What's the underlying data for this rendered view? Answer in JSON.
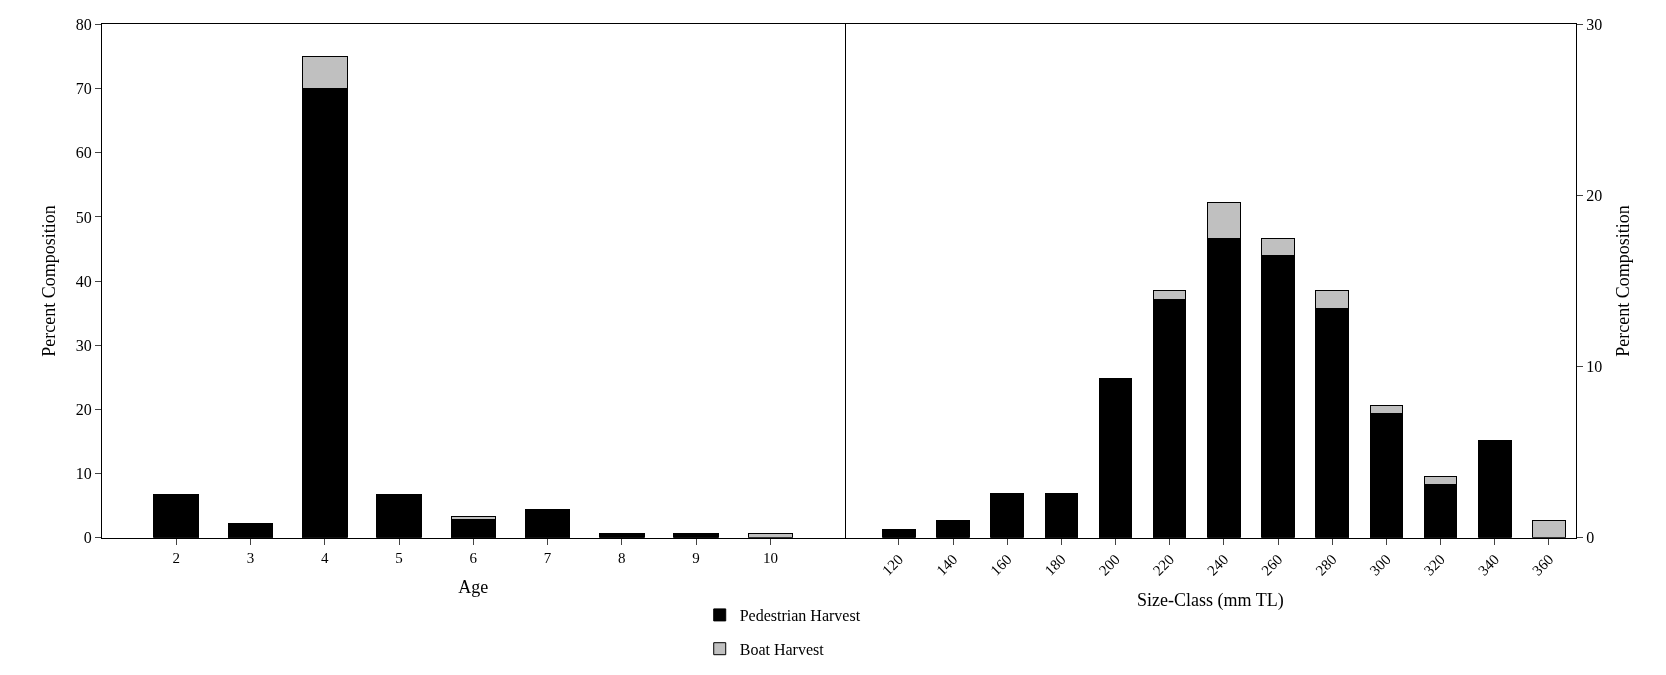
{
  "chart_data": [
    {
      "type": "bar",
      "stacked": true,
      "xlabel": "Age",
      "ylabel": "Percent Composition",
      "categories": [
        "2",
        "3",
        "4",
        "5",
        "6",
        "7",
        "8",
        "9",
        "10"
      ],
      "ylim": [
        0,
        80
      ],
      "yticks": [
        0,
        10,
        20,
        30,
        40,
        50,
        60,
        70,
        80
      ],
      "legend": "bottom",
      "series": [
        {
          "name": "Pedestrian Harvest",
          "color": "#000000",
          "values": [
            6.7,
            2.2,
            70,
            6.7,
            2.9,
            4.4,
            0.6,
            0.6,
            null
          ]
        },
        {
          "name": "Boat Harvest",
          "color": "#c0c0c0",
          "values": [
            null,
            null,
            5,
            null,
            0.4,
            null,
            null,
            null,
            0.6
          ]
        }
      ]
    },
    {
      "type": "bar",
      "stacked": true,
      "xlabel": "Size-Class (mm TL)",
      "ylabel": "Percent Composition",
      "categories": [
        "120",
        "140",
        "160",
        "180",
        "200",
        "220",
        "240",
        "260",
        "280",
        "300",
        "320",
        "340",
        "360"
      ],
      "ylim": [
        0,
        30
      ],
      "yticks": [
        0,
        10,
        20,
        30
      ],
      "series": [
        {
          "color": "#000000",
          "values": [
            0.5,
            1.0,
            2.6,
            2.6,
            9.3,
            13.9,
            17.5,
            16.5,
            13.4,
            7.25,
            3.1,
            5.7,
            null
          ]
        },
        {
          "color": "#c0c0c0",
          "values": [
            null,
            null,
            null,
            null,
            null,
            0.55,
            2.1,
            1.0,
            1.05,
            0.45,
            0.5,
            null,
            1.0
          ]
        }
      ]
    }
  ]
}
